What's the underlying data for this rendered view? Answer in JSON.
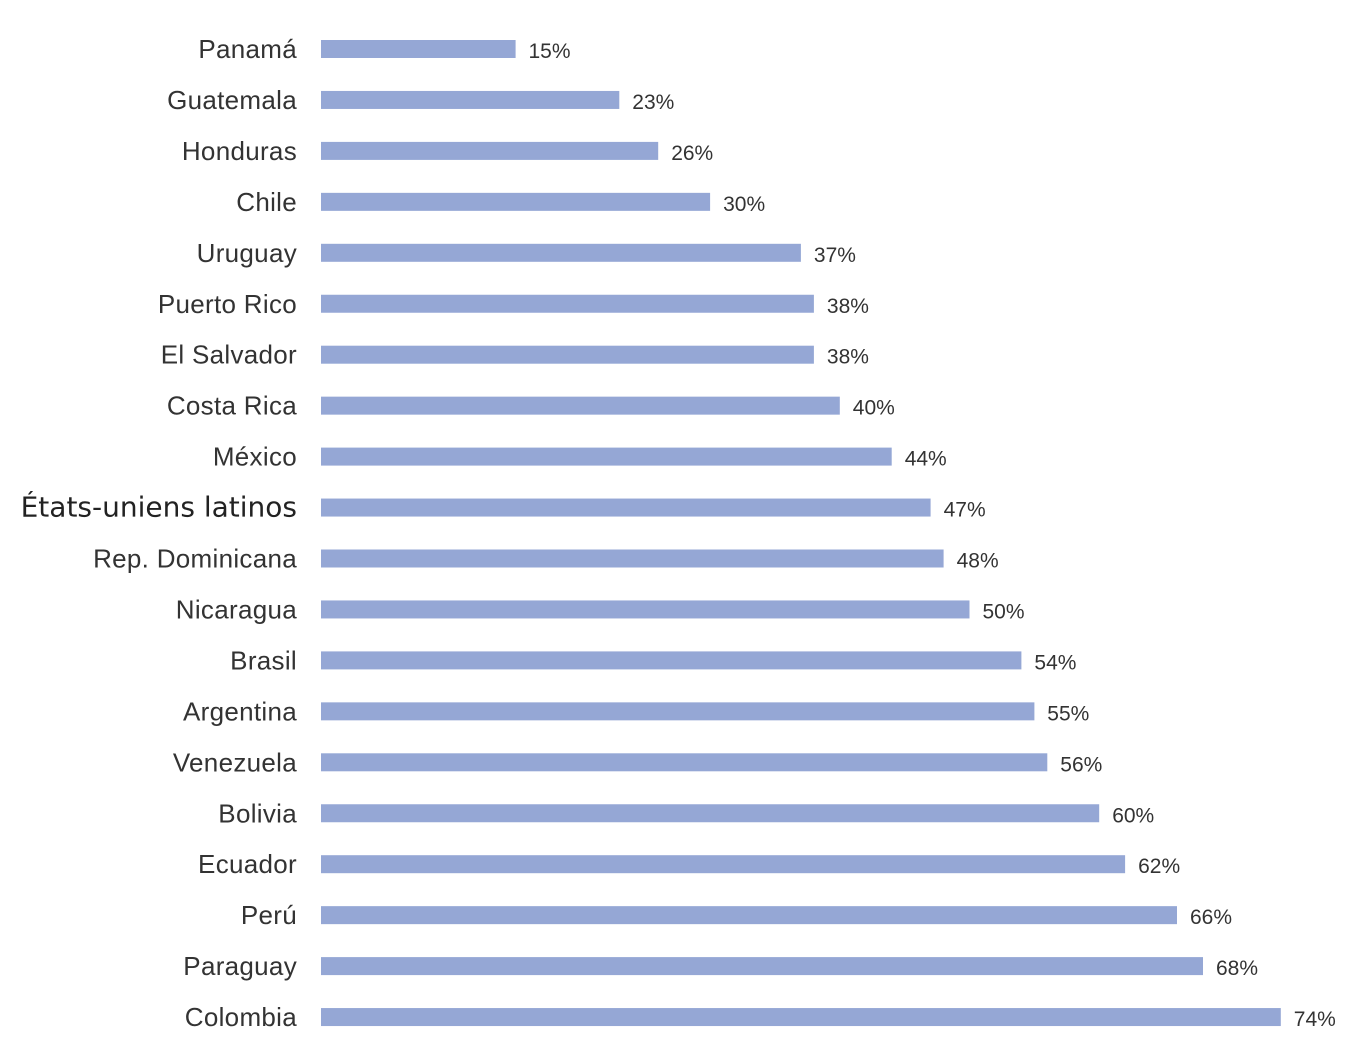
{
  "chart_data": {
    "type": "bar",
    "orientation": "horizontal",
    "categories": [
      "Panamá",
      "Guatemala",
      "Honduras",
      "Chile",
      "Uruguay",
      "Puerto Rico",
      "El Salvador",
      "Costa Rica",
      "México",
      "États-uniens latinos",
      "Rep. Dominicana",
      "Nicaragua",
      "Brasil",
      "Argentina",
      "Venezuela",
      "Bolivia",
      "Ecuador",
      "Perú",
      "Paraguay",
      "Colombia"
    ],
    "values": [
      15,
      23,
      26,
      30,
      37,
      38,
      38,
      40,
      44,
      47,
      48,
      50,
      54,
      55,
      56,
      60,
      62,
      66,
      68,
      74
    ],
    "value_labels": [
      "15%",
      "23%",
      "26%",
      "30%",
      "37%",
      "38%",
      "38%",
      "40%",
      "44%",
      "47%",
      "48%",
      "50%",
      "54%",
      "55%",
      "56%",
      "60%",
      "62%",
      "66%",
      "68%",
      "74%"
    ],
    "highlighted_category": "États-uniens latinos",
    "unit": "%",
    "xlim": [
      0,
      74
    ],
    "bar_color": "#95a7d5",
    "grid": false,
    "legend": "none"
  }
}
